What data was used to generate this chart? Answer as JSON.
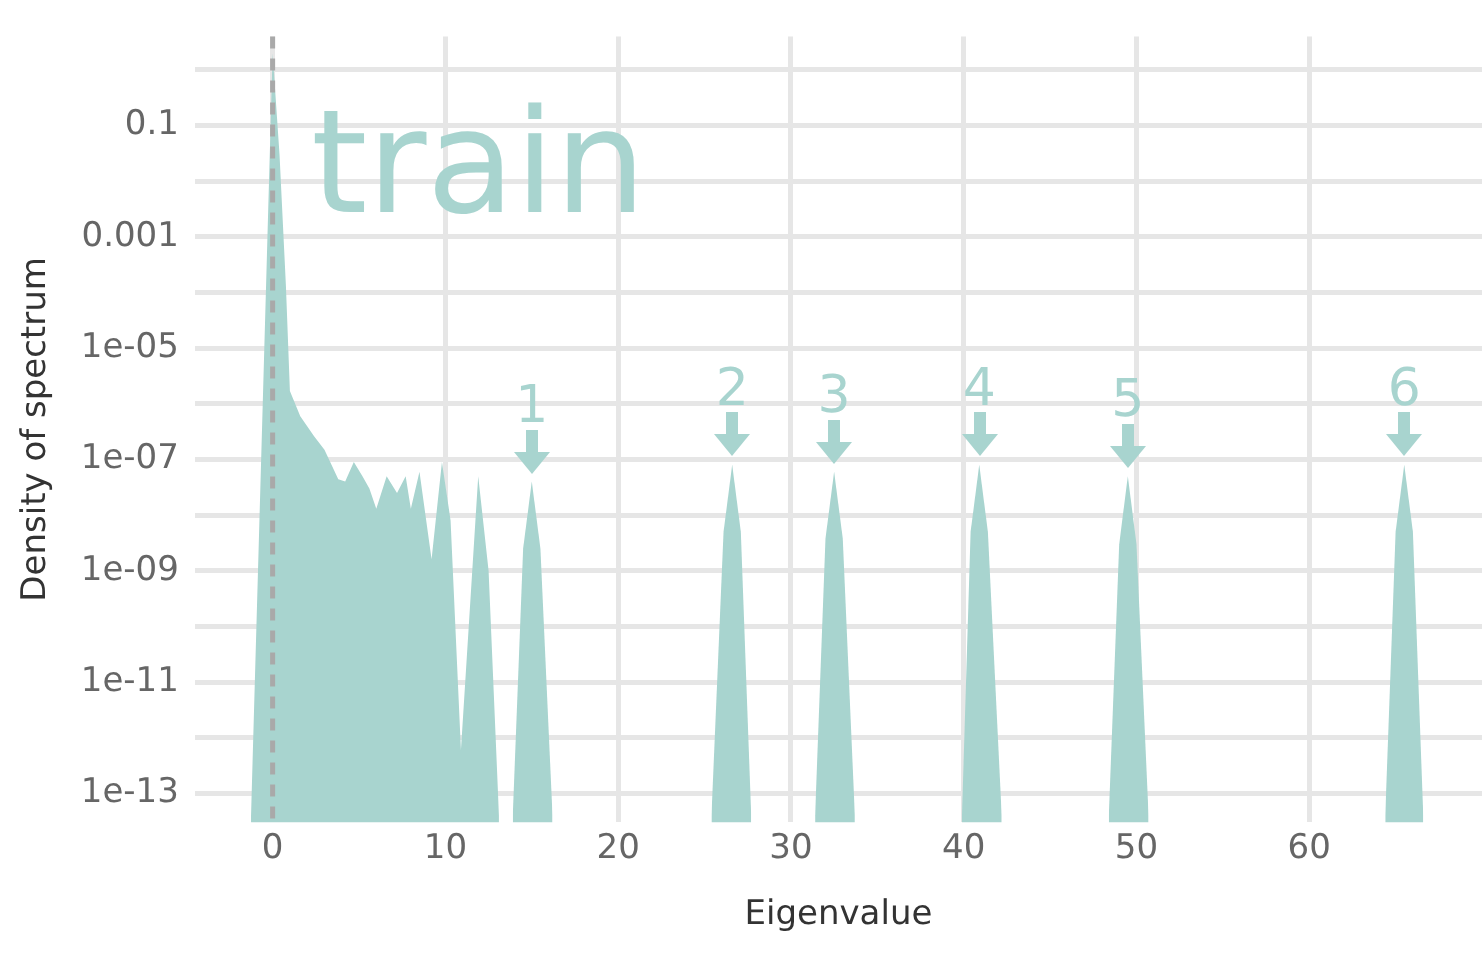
{
  "chart_data": {
    "type": "area",
    "xlabel": "Eigenvalue",
    "ylabel": "Density of spectrum",
    "x": [
      -1.25,
      -0.6,
      0,
      0.4,
      0.77,
      1.0,
      1.6,
      2.4,
      3.0,
      3.8,
      4.2,
      4.7,
      5.2,
      5.6,
      6.0,
      6.6,
      7.2,
      7.7,
      8.0,
      8.5,
      9.2,
      9.8,
      10.3,
      10.9,
      11.9,
      12.5,
      13.1,
      13.5,
      13.9,
      14.5,
      15.0,
      15.5,
      16.2,
      20,
      25.4,
      26.1,
      26.6,
      27.1,
      27.7,
      30,
      31.4,
      32.0,
      32.5,
      33.0,
      33.7,
      36,
      39.9,
      40.4,
      40.9,
      41.4,
      42.2,
      45,
      48.4,
      49.0,
      49.5,
      50.0,
      50.7,
      57,
      64.4,
      65.0,
      65.5,
      66.0,
      66.6
    ],
    "series": [
      {
        "color": "#a8d4cf",
        "values": [
          4e-14,
          5e-07,
          2,
          0.03,
          0.00013,
          1.7e-06,
          6e-07,
          2.6e-07,
          1.5e-07,
          4.4e-08,
          4e-08,
          9e-08,
          5e-08,
          3e-08,
          1.3e-08,
          5e-08,
          2.5e-08,
          5e-08,
          1.3e-08,
          6e-08,
          1.6e-09,
          9e-08,
          8e-09,
          6e-13,
          5e-08,
          1e-09,
          4e-14,
          null,
          4e-14,
          2.5e-09,
          4e-08,
          2.5e-09,
          4e-14,
          null,
          4e-14,
          5e-09,
          8e-08,
          5e-09,
          4e-14,
          null,
          4e-14,
          3.8e-09,
          6e-08,
          3.8e-09,
          4e-14,
          null,
          4e-14,
          5e-09,
          8e-08,
          5e-09,
          4e-14,
          null,
          4e-14,
          3e-09,
          5e-08,
          3e-09,
          4e-14,
          null,
          4e-14,
          5e-09,
          8e-08,
          5e-09,
          4e-14
        ]
      }
    ],
    "xlim": [
      -4.5,
      70
    ],
    "xticks": [
      0,
      10,
      20,
      30,
      40,
      50,
      60
    ],
    "ylim": [
      3e-14,
      4
    ],
    "yticks": [
      {
        "value": 1,
        "label": null
      },
      0.1,
      {
        "value": 0.01,
        "label": null
      },
      0.001,
      {
        "value": 0.0001,
        "label": null
      },
      {
        "value": 1e-05,
        "label": "1e-05"
      },
      {
        "value": 1e-06,
        "label": null
      },
      {
        "value": 1e-07,
        "label": "1e-07"
      },
      {
        "value": 1e-08,
        "label": null
      },
      {
        "value": 1e-09,
        "label": "1e-09"
      },
      {
        "value": 1e-10,
        "label": null
      },
      {
        "value": 1e-11,
        "label": "1e-11"
      },
      {
        "value": 1e-12,
        "label": null
      },
      {
        "value": 1e-13,
        "label": "1e-13"
      }
    ],
    "log": "y",
    "grid": true,
    "legend": false,
    "marker": "none",
    "ref_lines": [
      {
        "axis": "x",
        "value": 0,
        "color": "#a9a9a9",
        "line_style": "dashed"
      }
    ],
    "annotations": [
      "train",
      {
        "text": "1",
        "x": 15.0,
        "y": 4e-08
      },
      {
        "text": "2",
        "x": 26.6,
        "y": 8e-08
      },
      {
        "text": "3",
        "x": 32.5,
        "y": 6e-08
      },
      {
        "text": "4",
        "x": 40.9,
        "y": 8e-08
      },
      {
        "text": "5",
        "x": 49.5,
        "y": 5e-08
      },
      {
        "text": "6",
        "x": 65.5,
        "y": 8e-08
      }
    ]
  }
}
